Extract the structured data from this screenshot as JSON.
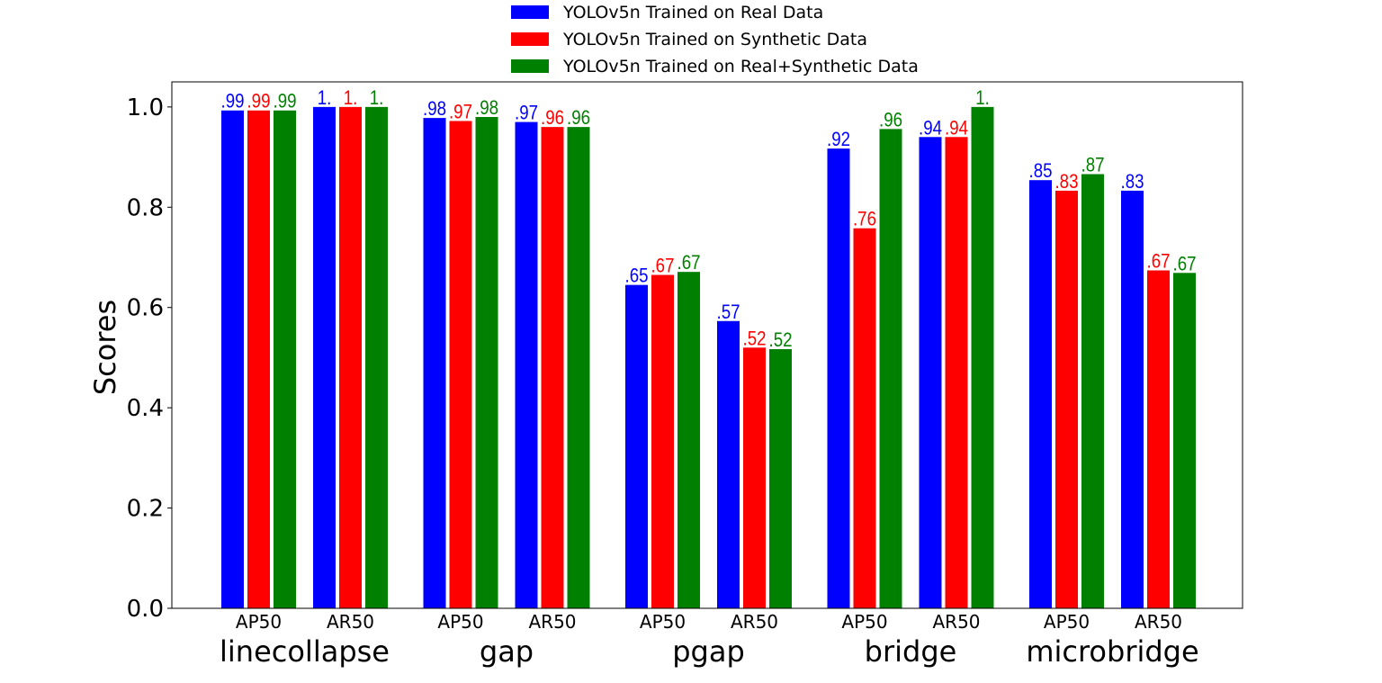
{
  "chart_data": {
    "type": "bar",
    "ylabel": "Scores",
    "ylim": [
      0,
      1.05
    ],
    "yticks": [
      "0.0",
      "0.2",
      "0.4",
      "0.6",
      "0.8",
      "1.0"
    ],
    "legend_position": "top-center",
    "groups": [
      {
        "name": "linecollapse",
        "metrics": [
          "AP50",
          "AR50"
        ]
      },
      {
        "name": "gap",
        "metrics": [
          "AP50",
          "AR50"
        ]
      },
      {
        "name": "pgap",
        "metrics": [
          "AP50",
          "AR50"
        ]
      },
      {
        "name": "bridge",
        "metrics": [
          "AP50",
          "AR50"
        ]
      },
      {
        "name": "microbridge",
        "metrics": [
          "AP50",
          "AR50"
        ]
      }
    ],
    "series": [
      {
        "name": "YOLOv5n Trained on Real Data",
        "color": "#0000ff",
        "values": [
          0.993,
          1.0,
          0.978,
          0.97,
          0.645,
          0.573,
          0.917,
          0.94,
          0.854,
          0.833
        ],
        "labels": [
          ".99",
          "1.",
          ".98",
          ".97",
          ".65",
          ".57",
          ".92",
          ".94",
          ".85",
          ".83"
        ]
      },
      {
        "name": "YOLOv5n Trained on Synthetic Data",
        "color": "#ff0000",
        "values": [
          0.993,
          1.0,
          0.972,
          0.96,
          0.665,
          0.52,
          0.758,
          0.94,
          0.833,
          0.674
        ],
        "labels": [
          ".99",
          "1.",
          ".97",
          ".96",
          ".67",
          ".52",
          ".76",
          ".94",
          ".83",
          ".67"
        ]
      },
      {
        "name": "YOLOv5n Trained on Real+Synthetic Data",
        "color": "#008000",
        "values": [
          0.993,
          1.0,
          0.98,
          0.96,
          0.671,
          0.517,
          0.956,
          1.0,
          0.866,
          0.669
        ],
        "labels": [
          ".99",
          "1.",
          ".98",
          ".96",
          ".67",
          ".52",
          ".96",
          "1.",
          ".87",
          ".67"
        ]
      }
    ]
  }
}
